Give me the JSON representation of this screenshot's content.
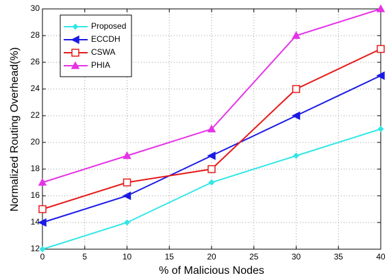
{
  "chart_data": {
    "type": "line",
    "x_label": "% of Malicious Nodes",
    "y_label": "Normalized Routing Overhead(%)",
    "x": [
      0,
      10,
      20,
      30,
      40
    ],
    "series": [
      {
        "name": "Proposed",
        "color": "#33e6e6",
        "marker": "diamond",
        "values": [
          12,
          14,
          17,
          19,
          21
        ]
      },
      {
        "name": "ECCDH",
        "color": "#1a1ae6",
        "marker": "triangle-left",
        "values": [
          14,
          16,
          19,
          22,
          25
        ]
      },
      {
        "name": "CSWA",
        "color": "#e61a1a",
        "marker": "square",
        "values": [
          15,
          17,
          18,
          24,
          27
        ]
      },
      {
        "name": "PHIA",
        "color": "#e633e6",
        "marker": "triangle-up",
        "values": [
          17,
          19,
          21,
          28,
          30
        ]
      }
    ],
    "xlim": [
      0,
      40
    ],
    "xticks": [
      0,
      5,
      10,
      15,
      20,
      25,
      30,
      35,
      40
    ],
    "ylim": [
      12,
      30
    ],
    "yticks": [
      12,
      14,
      16,
      18,
      20,
      22,
      24,
      26,
      28,
      30
    ],
    "grid": true,
    "legend": "upper-left"
  }
}
